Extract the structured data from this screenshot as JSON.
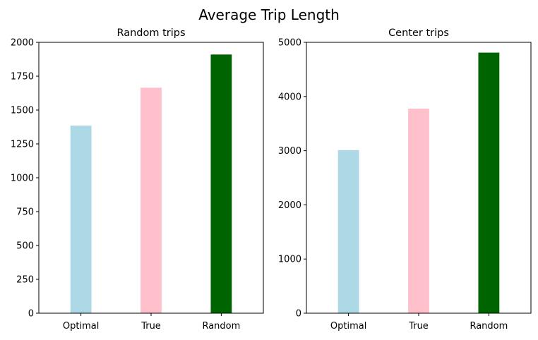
{
  "figure": {
    "title": "Average Trip Length"
  },
  "chart_data": [
    {
      "type": "bar",
      "title": "Random trips",
      "xlabel": "",
      "ylabel": "",
      "categories": [
        "Optimal",
        "True",
        "Random"
      ],
      "values": [
        1385,
        1665,
        1910
      ],
      "colors": [
        "#add8e6",
        "#ffc0cb",
        "#006400"
      ],
      "ylim": [
        0,
        2000
      ],
      "yticks": [
        0,
        250,
        500,
        750,
        1000,
        1250,
        1500,
        1750,
        2000
      ],
      "grid": false
    },
    {
      "type": "bar",
      "title": "Center trips",
      "xlabel": "",
      "ylabel": "",
      "categories": [
        "Optimal",
        "True",
        "Random"
      ],
      "values": [
        3010,
        3775,
        4810
      ],
      "colors": [
        "#add8e6",
        "#ffc0cb",
        "#006400"
      ],
      "ylim": [
        0,
        5000
      ],
      "yticks": [
        0,
        1000,
        2000,
        3000,
        4000,
        5000
      ],
      "grid": false
    }
  ]
}
